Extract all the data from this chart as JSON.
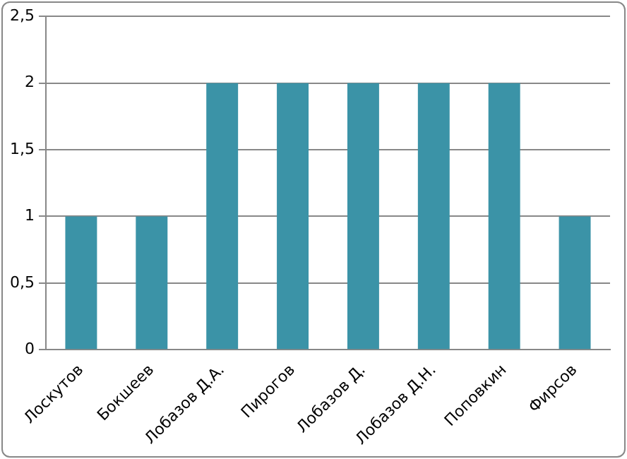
{
  "chart_data": {
    "type": "bar",
    "categories": [
      "Лоскутов",
      "Бокшеев",
      "Лобазов Д.А.",
      "Пирогов",
      "Лобазов Д.",
      "Лобазов Д.Н.",
      "Поповкин",
      "Фирсов"
    ],
    "values": [
      1,
      1,
      2,
      2,
      2,
      2,
      2,
      1
    ],
    "color": "#3b93a7",
    "ylim": [
      0,
      2.5
    ],
    "yticks": [
      0,
      {
        "value": 0.5,
        "label": "0,5"
      },
      1,
      {
        "value": 1.5,
        "label": "1,5"
      },
      2,
      {
        "value": 2.5,
        "label": "2,5"
      }
    ],
    "grid": "y"
  }
}
